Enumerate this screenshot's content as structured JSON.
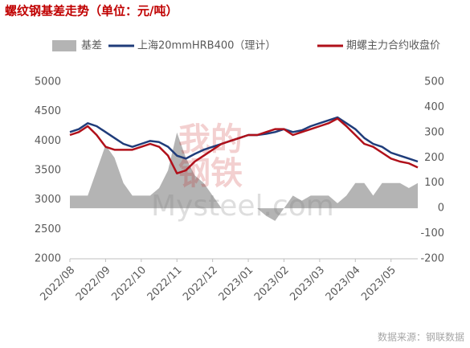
{
  "chart_data": {
    "type": "line",
    "title": "螺纹钢基差走势（单位：元/吨）",
    "source": "数据来源：钢联数据",
    "watermark": [
      "我的",
      "钢铁",
      "Mysteel.com"
    ],
    "categories": [
      "2022/08",
      null,
      null,
      null,
      "2022/09",
      null,
      null,
      null,
      "2022/10",
      null,
      null,
      null,
      "2022/11",
      null,
      null,
      null,
      "2022/12",
      null,
      null,
      null,
      "2023/01",
      null,
      null,
      null,
      "2023/02",
      null,
      null,
      null,
      "2023/03",
      null,
      null,
      null,
      "2023/04",
      null,
      null,
      null,
      "2023/05",
      null,
      null,
      null
    ],
    "series": [
      {
        "name": "基差",
        "type": "area",
        "axis": "y2",
        "color": "#b4b4b4",
        "values": [
          50,
          50,
          50,
          150,
          250,
          200,
          100,
          50,
          50,
          50,
          80,
          150,
          300,
          200,
          130,
          100,
          50,
          0,
          0,
          0,
          0,
          0,
          -30,
          -50,
          0,
          50,
          30,
          50,
          50,
          50,
          20,
          50,
          100,
          100,
          50,
          100,
          100,
          100,
          80,
          100
        ]
      },
      {
        "name": "上海20mmHRB400（理计）",
        "color": "#1f3c7a",
        "values": [
          4150,
          4200,
          4300,
          4250,
          4150,
          4050,
          3950,
          3900,
          3950,
          4000,
          3980,
          3900,
          3750,
          3700,
          3780,
          3850,
          3900,
          3950,
          4000,
          4050,
          4100,
          4100,
          4120,
          4150,
          4200,
          4150,
          4180,
          4250,
          4300,
          4350,
          4400,
          4300,
          4200,
          4050,
          3950,
          3900,
          3800,
          3750,
          3700,
          3650
        ]
      },
      {
        "name": "期螺主力合约收盘价",
        "color": "#b0101a",
        "values": [
          4100,
          4150,
          4250,
          4100,
          3900,
          3850,
          3850,
          3850,
          3900,
          3950,
          3900,
          3750,
          3450,
          3500,
          3650,
          3750,
          3850,
          3950,
          4000,
          4050,
          4100,
          4100,
          4150,
          4200,
          4200,
          4100,
          4150,
          4200,
          4250,
          4300,
          4380,
          4250,
          4100,
          3950,
          3900,
          3800,
          3700,
          3650,
          3620,
          3550
        ]
      }
    ],
    "ylim": [
      2000,
      5000
    ],
    "yticks": [
      2000,
      2500,
      3000,
      3500,
      4000,
      4500,
      5000
    ],
    "y2lim": [
      -200,
      500
    ],
    "y2ticks": [
      -200,
      -100,
      0,
      100,
      200,
      300,
      400,
      500
    ],
    "grid": false,
    "legend": "top"
  }
}
